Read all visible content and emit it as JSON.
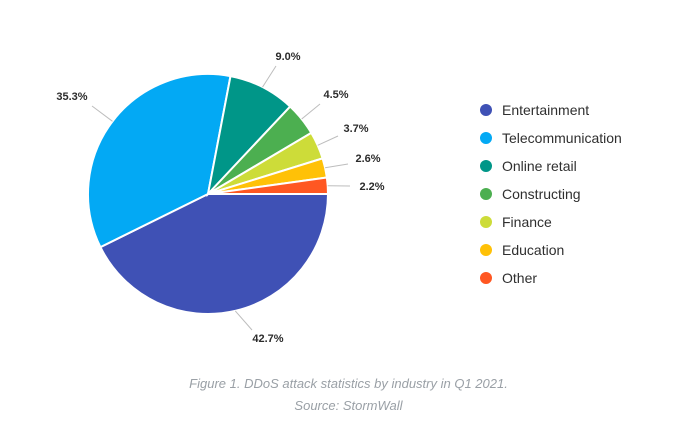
{
  "chart_data": {
    "type": "pie",
    "title": "",
    "categories": [
      "Entertainment",
      "Telecommunication",
      "Online retail",
      "Constructing",
      "Finance",
      "Education",
      "Other"
    ],
    "values": [
      42.7,
      35.3,
      9.0,
      4.5,
      3.7,
      2.6,
      2.2
    ],
    "labels": [
      "42.7%",
      "35.3%",
      "9.0%",
      "4.5%",
      "3.7%",
      "2.6%",
      "2.2%"
    ],
    "colors": [
      "#3f51b5",
      "#03a9f4",
      "#009688",
      "#4caf50",
      "#cddc39",
      "#ffc107",
      "#ff5722"
    ],
    "legend_position": "right"
  },
  "caption": {
    "line1": "Figure 1. DDoS attack statistics by industry in Q1 2021.",
    "line2": "Source: StormWall"
  }
}
